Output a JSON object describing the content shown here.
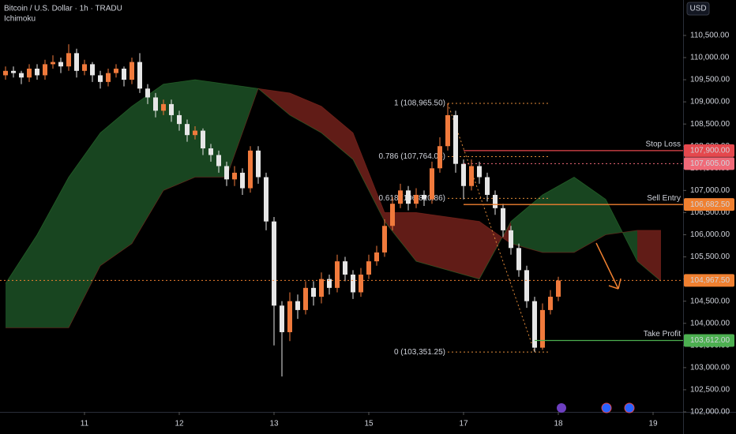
{
  "chart_data": {
    "type": "candlestick",
    "title": "Bitcoin / U.S. Dollar · 1h · TRADU",
    "indicator": "Ichimoku",
    "currency": "USD",
    "xlim": [
      -21.4,
      151.6
    ],
    "ylim": [
      102000,
      111300
    ],
    "xticks": [
      {
        "value": 0,
        "label": "11"
      },
      {
        "value": 24,
        "label": "12"
      },
      {
        "value": 48,
        "label": "13"
      },
      {
        "value": 72,
        "label": "15"
      },
      {
        "value": 96,
        "label": "17"
      },
      {
        "value": 120,
        "label": "18"
      },
      {
        "value": 144,
        "label": "19"
      }
    ],
    "yticks": [
      {
        "value": 102000,
        "label": "102,000.00"
      },
      {
        "value": 102500,
        "label": "102,500.00"
      },
      {
        "value": 103000,
        "label": "103,000.00"
      },
      {
        "value": 103500,
        "label": "103,500.00"
      },
      {
        "value": 104000,
        "label": "104,000.00"
      },
      {
        "value": 104500,
        "label": "104,500.00"
      },
      {
        "value": 105000,
        "label": "105,000.00"
      },
      {
        "value": 105500,
        "label": "105,500.00"
      },
      {
        "value": 106000,
        "label": "106,000.00"
      },
      {
        "value": 106500,
        "label": "106,500.00"
      },
      {
        "value": 107000,
        "label": "107,000.00"
      },
      {
        "value": 107500,
        "label": "107,500.00"
      },
      {
        "value": 108000,
        "label": "108,000.00"
      },
      {
        "value": 108500,
        "label": "108,500.00"
      },
      {
        "value": 109000,
        "label": "109,000.00"
      },
      {
        "value": 109500,
        "label": "109,500.00"
      },
      {
        "value": 110000,
        "label": "110,000.00"
      },
      {
        "value": 110500,
        "label": "110,500.00"
      }
    ],
    "up_color": "#f07a3c",
    "down_color": "#e6e6e6",
    "x": [
      -20,
      -18,
      -16,
      -14,
      -12,
      -10,
      -8,
      -6,
      -4,
      -2,
      0,
      2,
      4,
      6,
      8,
      10,
      12,
      14,
      16,
      18,
      20,
      22,
      24,
      26,
      28,
      30,
      32,
      34,
      36,
      38,
      40,
      42,
      44,
      46,
      48,
      50,
      52,
      54,
      56,
      58,
      60,
      62,
      64,
      66,
      68,
      70,
      72,
      74,
      76,
      78,
      80,
      82,
      84,
      86,
      88,
      90,
      92,
      94,
      96,
      98,
      100,
      102,
      104,
      106,
      108,
      110,
      112,
      114,
      116,
      118,
      120
    ],
    "open": [
      109600,
      109700,
      109650,
      109550,
      109750,
      109600,
      109850,
      109900,
      109800,
      110100,
      109700,
      109850,
      109600,
      109450,
      109650,
      109750,
      109500,
      109900,
      109300,
      109100,
      108800,
      108950,
      108700,
      108500,
      108250,
      108350,
      107950,
      107800,
      107550,
      107250,
      107400,
      107050,
      107900,
      107300,
      106300,
      104400,
      103800,
      104500,
      104300,
      104800,
      104600,
      105000,
      104800,
      105400,
      105100,
      104700,
      105100,
      105400,
      105600,
      106200,
      106700,
      107000,
      106700,
      106900,
      106800,
      107500,
      108000,
      108700,
      107600,
      107100,
      107550,
      107300,
      106900,
      106600,
      106100,
      105700,
      105200,
      104500,
      103450,
      104300,
      104600
    ],
    "high": [
      109800,
      109800,
      109700,
      109850,
      109850,
      109950,
      110050,
      110000,
      110300,
      110200,
      109950,
      109900,
      109700,
      109750,
      109850,
      109800,
      110000,
      110100,
      109400,
      109200,
      109050,
      109050,
      108800,
      108600,
      108450,
      108400,
      108050,
      107900,
      107650,
      107550,
      107500,
      108000,
      108000,
      107400,
      106400,
      104500,
      104700,
      104650,
      104950,
      104950,
      105150,
      105100,
      105550,
      105500,
      105200,
      105250,
      105550,
      105750,
      106350,
      106850,
      107150,
      107100,
      107050,
      107000,
      107650,
      108200,
      108965.5,
      108800,
      107700,
      107700,
      107650,
      107400,
      107000,
      106700,
      106200,
      105800,
      105300,
      104600,
      104450,
      104750,
      105050
    ],
    "low": [
      109500,
      109550,
      109400,
      109450,
      109500,
      109500,
      109750,
      109650,
      109700,
      109550,
      109600,
      109450,
      109300,
      109350,
      109550,
      109350,
      109400,
      109200,
      108950,
      108650,
      108700,
      108550,
      108350,
      108100,
      108150,
      107800,
      107650,
      107400,
      107100,
      107100,
      106900,
      106950,
      107150,
      106100,
      103500,
      102800,
      103600,
      104100,
      104200,
      104400,
      104450,
      104650,
      104700,
      104950,
      104550,
      104600,
      105000,
      105300,
      105500,
      106100,
      106600,
      106550,
      106600,
      106650,
      106700,
      107400,
      107900,
      107400,
      106800,
      107000,
      107150,
      106750,
      106450,
      105950,
      105550,
      105050,
      104350,
      103351.25,
      103400,
      104200,
      104500
    ],
    "close": [
      109700,
      109650,
      109550,
      109750,
      109600,
      109850,
      109900,
      109800,
      110100,
      109700,
      109850,
      109600,
      109450,
      109650,
      109750,
      109500,
      109900,
      109300,
      109100,
      108800,
      108950,
      108700,
      108500,
      108250,
      108350,
      107950,
      107800,
      107550,
      107250,
      107400,
      107050,
      107900,
      107300,
      106300,
      104400,
      103800,
      104500,
      104300,
      104800,
      104600,
      105000,
      104800,
      105400,
      105100,
      104700,
      105100,
      105400,
      105600,
      106200,
      106700,
      107000,
      106700,
      106900,
      106800,
      107500,
      108000,
      108700,
      107600,
      107100,
      107550,
      107300,
      106900,
      106600,
      106100,
      105700,
      105200,
      104500,
      103450,
      104300,
      104600,
      104967.5
    ],
    "cloud": {
      "x": [
        -20,
        -12,
        -4,
        4,
        12,
        20,
        28,
        36,
        44,
        52,
        60,
        68,
        76,
        84,
        92,
        100,
        108,
        116,
        124,
        132,
        140,
        146
      ],
      "span_a": [
        104900,
        106000,
        107300,
        108300,
        108900,
        109400,
        109500,
        109400,
        109300,
        108700,
        108300,
        107700,
        106300,
        105400,
        105200,
        105000,
        106300,
        106900,
        107300,
        106800,
        105400,
        104950
      ],
      "span_b": [
        103900,
        103900,
        103900,
        105300,
        105800,
        107000,
        107300,
        107300,
        109300,
        109200,
        108900,
        108300,
        106500,
        106500,
        106400,
        106300,
        105800,
        105600,
        105600,
        106000,
        106100,
        106100
      ],
      "bull_color": "#1b4d24",
      "bear_color": "#6b1f19"
    },
    "levels": [
      {
        "name": "Stop Loss",
        "value": 107900,
        "label": "107,900.00",
        "color": "#e5484d"
      },
      {
        "value": 107605,
        "label": "107,605.00",
        "color": "#f06a78"
      },
      {
        "name": "Sell Entry",
        "value": 106682.5,
        "label": "106,682.50",
        "color": "#f08030"
      },
      {
        "value": 104967.5,
        "label": "104,967.50",
        "color": "#f08030"
      },
      {
        "name": "Take Profit",
        "value": 103612,
        "label": "103,612.00",
        "color": "#4caf50"
      }
    ],
    "fib": [
      {
        "label": "1 (108,965.50)",
        "value": 108965.5
      },
      {
        "label": "0.786 (107,764.05)",
        "value": 107764.05
      },
      {
        "label": "0.618 (106,820.86)",
        "value": 106820.86
      },
      {
        "label": "0 (103,351.25)",
        "value": 103351.25
      }
    ],
    "fib_color": "#e08a3a"
  }
}
